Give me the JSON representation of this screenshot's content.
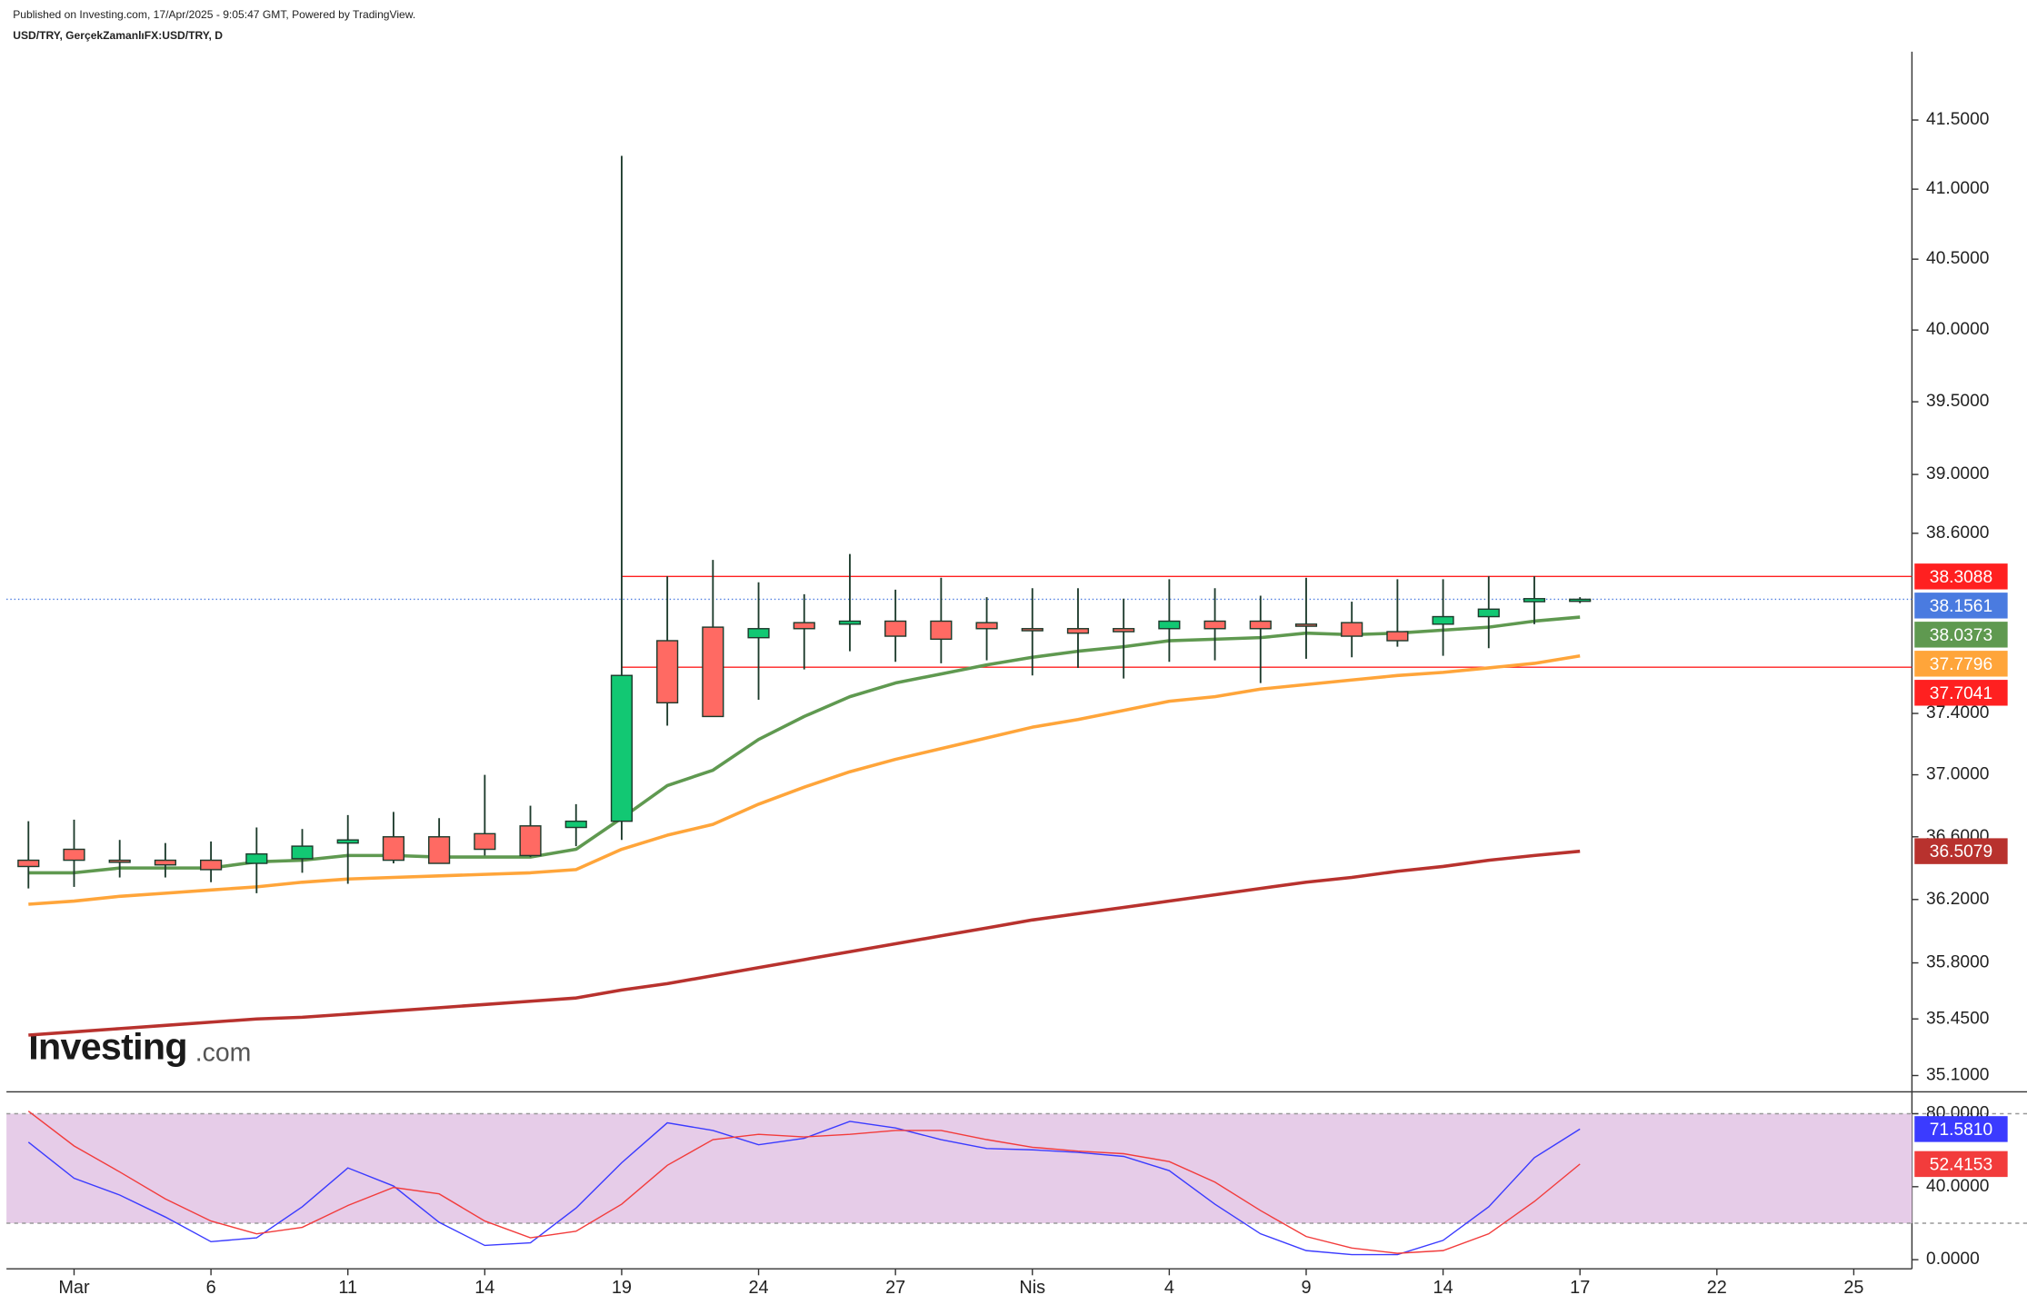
{
  "header": {
    "published": "Published on Investing.com, 17/Apr/2025 - 9:05:47 GMT, Powered by TradingView.",
    "symbol": "USD/TRY, GerçekZamanlıFX:USD/TRY, D"
  },
  "logo": {
    "name": "Investing",
    "suffix": ".com"
  },
  "chart_data": [
    {
      "type": "candlestick",
      "log_scale": true,
      "grid": false,
      "up_color": "#12c873",
      "down_color": "#ff6a63",
      "wick_color": "#1d3b2c",
      "last_color": "#4a7be0",
      "categories": [
        null,
        "Mar",
        null,
        null,
        "6",
        null,
        null,
        "11",
        null,
        null,
        "14",
        null,
        null,
        "19",
        null,
        null,
        "24",
        null,
        null,
        "27",
        null,
        null,
        "Nis",
        null,
        null,
        "4",
        null,
        null,
        "9",
        null,
        null,
        "14",
        null,
        null,
        "17",
        null,
        null,
        "22",
        null,
        null,
        "25",
        null
      ],
      "open": [
        36.45,
        36.52,
        36.45,
        36.45,
        36.45,
        36.43,
        36.46,
        36.56,
        36.6,
        36.6,
        36.62,
        36.67,
        36.66,
        36.7,
        37.88,
        37.97,
        37.9,
        38.0,
        37.99,
        38.01,
        38.01,
        38.0,
        37.96,
        37.96,
        37.96,
        37.96,
        38.01,
        38.01,
        37.99,
        38.0,
        37.94,
        37.99,
        38.04,
        38.14,
        38.15,
        null,
        null,
        null,
        null,
        null,
        null,
        null
      ],
      "high": [
        36.7,
        36.71,
        36.58,
        36.56,
        36.57,
        36.66,
        36.65,
        36.74,
        36.76,
        36.72,
        37.0,
        36.8,
        36.81,
        41.24,
        38.31,
        38.42,
        38.27,
        38.19,
        38.46,
        38.22,
        38.3,
        38.17,
        38.23,
        38.23,
        38.16,
        38.29,
        38.23,
        38.18,
        38.3,
        38.14,
        38.29,
        38.29,
        38.31,
        38.31,
        38.17,
        null,
        null,
        null,
        null,
        null,
        null,
        null
      ],
      "low": [
        36.27,
        36.28,
        36.34,
        36.34,
        36.31,
        36.24,
        36.37,
        36.3,
        36.43,
        36.43,
        36.48,
        36.47,
        36.54,
        36.58,
        37.32,
        37.38,
        37.49,
        37.69,
        37.81,
        37.74,
        37.73,
        37.75,
        37.65,
        37.7,
        37.63,
        37.74,
        37.75,
        37.6,
        37.76,
        37.77,
        37.84,
        37.78,
        37.83,
        37.99,
        38.13,
        null,
        null,
        null,
        null,
        null,
        null,
        null
      ],
      "close": [
        36.41,
        36.45,
        36.44,
        36.42,
        36.39,
        36.49,
        36.54,
        36.58,
        36.45,
        36.43,
        36.52,
        36.48,
        36.7,
        37.65,
        37.47,
        37.38,
        37.96,
        37.96,
        38.01,
        37.91,
        37.89,
        37.96,
        37.95,
        37.93,
        37.94,
        38.01,
        37.96,
        37.96,
        37.98,
        37.91,
        37.88,
        38.04,
        38.09,
        38.16,
        38.1561,
        null,
        null,
        null,
        null,
        null,
        null,
        null
      ],
      "series": [
        {
          "color": "#5f9950",
          "values": [
            36.37,
            36.37,
            36.4,
            36.4,
            36.4,
            36.44,
            36.45,
            36.48,
            36.48,
            36.47,
            36.47,
            36.47,
            36.52,
            36.72,
            36.93,
            37.03,
            37.23,
            37.38,
            37.51,
            37.6,
            37.66,
            37.72,
            37.77,
            37.81,
            37.84,
            37.88,
            37.89,
            37.9,
            37.93,
            37.92,
            37.93,
            37.95,
            37.97,
            38.01,
            38.0373,
            null,
            null,
            null,
            null,
            null,
            null,
            null
          ]
        },
        {
          "color": "#ffa53a",
          "values": [
            36.17,
            36.19,
            36.22,
            36.24,
            36.26,
            36.28,
            36.31,
            36.33,
            36.34,
            36.35,
            36.36,
            36.37,
            36.39,
            36.52,
            36.61,
            36.68,
            36.81,
            36.92,
            37.02,
            37.1,
            37.17,
            37.24,
            37.31,
            37.36,
            37.42,
            37.48,
            37.51,
            37.56,
            37.59,
            37.62,
            37.65,
            37.67,
            37.7,
            37.73,
            37.7796,
            null,
            null,
            null,
            null,
            null,
            null,
            null
          ]
        },
        {
          "color": "#b8322e",
          "values": [
            35.35,
            35.37,
            35.39,
            35.41,
            35.43,
            35.45,
            35.46,
            35.48,
            35.5,
            35.52,
            35.54,
            35.56,
            35.58,
            35.63,
            35.67,
            35.72,
            35.77,
            35.82,
            35.87,
            35.92,
            35.97,
            36.02,
            36.07,
            36.11,
            36.15,
            36.19,
            36.23,
            36.27,
            36.31,
            36.34,
            36.38,
            36.41,
            36.45,
            36.48,
            36.5079,
            null,
            null,
            null,
            null,
            null,
            null,
            null
          ]
        }
      ],
      "hlines": [
        {
          "value": 38.3088,
          "color": "#ff2020"
        },
        {
          "value": 37.7041,
          "color": "#ff2020"
        }
      ],
      "ylim": [
        35.0,
        42.0
      ],
      "yticks": [
        {
          "value": 35.1,
          "label": "35.1000"
        },
        {
          "value": 35.45,
          "label": "35.4500"
        },
        {
          "value": 35.8,
          "label": "35.8000"
        },
        {
          "value": 36.2,
          "label": "36.2000"
        },
        {
          "value": 36.6,
          "label": "36.6000"
        },
        {
          "value": 37,
          "label": "37.0000"
        },
        {
          "value": 37.4,
          "label": "37.4000"
        },
        {
          "value": 38.6,
          "label": "38.6000"
        },
        {
          "value": 39,
          "label": "39.0000"
        },
        {
          "value": 39.5,
          "label": "39.5000"
        },
        {
          "value": 40,
          "label": "40.0000"
        },
        {
          "value": 40.5,
          "label": "40.5000"
        },
        {
          "value": 41,
          "label": "41.0000"
        },
        {
          "value": 41.5,
          "label": "41.5000"
        }
      ]
    },
    {
      "type": "line",
      "band": [
        20,
        80
      ],
      "band_color": "#e6cce8",
      "series": [
        {
          "color": "#3b3bff",
          "values": [
            64.4,
            44.6,
            35.4,
            23.4,
            9.9,
            12.0,
            29.0,
            50.3,
            40.4,
            20.5,
            7.8,
            9.2,
            28.3,
            53.1,
            75.0,
            70.8,
            63.0,
            66.5,
            75.8,
            72.2,
            65.8,
            60.9,
            60.2,
            58.8,
            56.6,
            48.8,
            30.4,
            14.2,
            5.0,
            2.8,
            2.8,
            10.6,
            29.0,
            55.9,
            71.581
          ],
          "value_labels": [
            null,
            null,
            null,
            null,
            null,
            null,
            null,
            null,
            null,
            null,
            null,
            null,
            null,
            null,
            null,
            null,
            null,
            null,
            null,
            null,
            null,
            null,
            null,
            null,
            null,
            null,
            null,
            null,
            null,
            null,
            null,
            null,
            null,
            null,
            "71.5810"
          ]
        },
        {
          "color": "#f23c3c",
          "values": [
            81.4,
            62.3,
            48.1,
            33.3,
            21.2,
            14.2,
            17.7,
            29.7,
            39.6,
            36.1,
            21.2,
            12.0,
            15.6,
            30.4,
            51.7,
            65.8,
            68.7,
            67.3,
            68.7,
            70.8,
            70.8,
            65.8,
            61.6,
            59.5,
            58.1,
            53.8,
            42.5,
            26.9,
            12.7,
            6.4,
            3.5,
            5.0,
            14.2,
            31.9,
            52.4153
          ]
        }
      ],
      "ylim": [
        -5,
        92
      ],
      "yticks": [
        {
          "value": 0,
          "label": "0.0000"
        },
        {
          "value": 40,
          "label": "40.0000"
        },
        {
          "value": 80,
          "label": "80.0000"
        }
      ]
    }
  ]
}
